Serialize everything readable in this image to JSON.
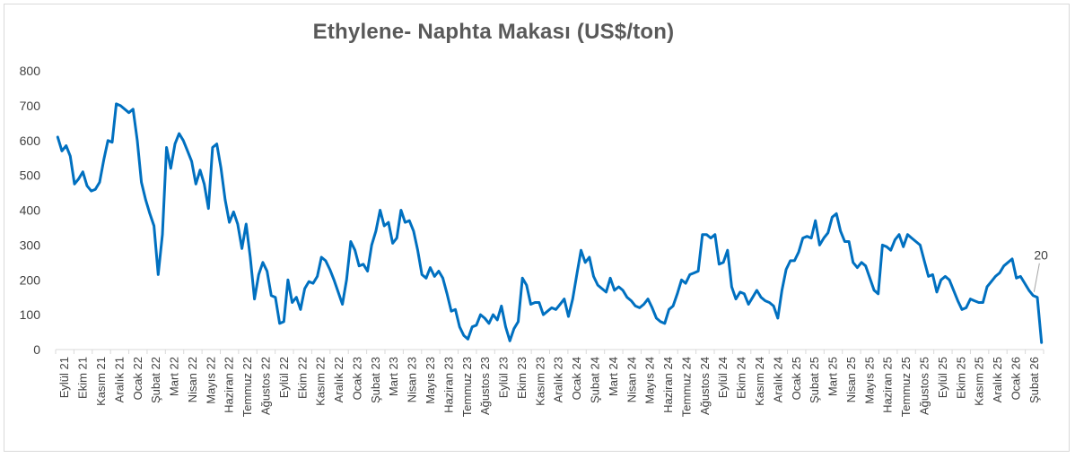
{
  "chart_data": {
    "type": "line",
    "title": "Ethylene- Naphta Makası (US$/ton)",
    "xlabel": "",
    "ylabel": "",
    "ylim": [
      0,
      800
    ],
    "yticks": [
      0,
      100,
      200,
      300,
      400,
      500,
      600,
      700,
      800
    ],
    "grid": false,
    "legend": "none",
    "color": "#0070C0",
    "x_tick_labels": [
      "Eylül 21",
      "Ekim 21",
      "Kasım 21",
      "Aralık 21",
      "Ocak 22",
      "Şubat 22",
      "Mart 22",
      "Nisan 22",
      "Mayıs 22",
      "Haziran 22",
      "Temmuz 22",
      "Ağustos 22",
      "Eylül 22",
      "Ekim 22",
      "Kasım 22",
      "Aralık 22",
      "Ocak 23",
      "Şubat 23",
      "Mart 23",
      "Nisan 23",
      "Mayıs 23",
      "Haziran 23",
      "Temmuz 23",
      "Ağustos 23",
      "Eylül 23",
      "Ekim 23",
      "Kasım 23",
      "Aralık 23",
      "Ocak 24",
      "Şubat 24",
      "Mart 24",
      "Nisan 24",
      "Mayıs 24",
      "Haziran 24",
      "Temmuz 24",
      "Ağustos 24",
      "Eylül 24",
      "Ekim 24",
      "Kasım 24",
      "Aralık 24",
      "Ocak 25",
      "Şubat 25",
      "Mart 25",
      "Nisan 25",
      "Mayıs 25",
      "Haziran 25",
      "Temmuz 25",
      "Ağustos 25",
      "Eylül 25",
      "Ekim 25",
      "Kasım 25",
      "Aralık 25",
      "Ocak 26",
      "Şubat 26"
    ],
    "values": [
      610,
      570,
      585,
      555,
      475,
      490,
      510,
      470,
      455,
      460,
      480,
      545,
      600,
      595,
      705,
      700,
      690,
      680,
      690,
      600,
      480,
      430,
      390,
      355,
      215,
      330,
      580,
      520,
      590,
      620,
      600,
      570,
      540,
      475,
      515,
      475,
      405,
      580,
      590,
      520,
      430,
      365,
      395,
      360,
      290,
      360,
      265,
      145,
      215,
      250,
      225,
      155,
      150,
      75,
      80,
      200,
      135,
      150,
      115,
      175,
      195,
      190,
      210,
      265,
      255,
      230,
      200,
      165,
      130,
      200,
      310,
      285,
      240,
      245,
      225,
      300,
      340,
      400,
      355,
      365,
      305,
      320,
      400,
      365,
      370,
      340,
      285,
      215,
      205,
      235,
      210,
      225,
      205,
      160,
      110,
      115,
      65,
      40,
      30,
      65,
      70,
      100,
      90,
      75,
      100,
      85,
      125,
      65,
      25,
      60,
      80,
      205,
      185,
      130,
      135,
      135,
      100,
      110,
      120,
      115,
      130,
      145,
      95,
      145,
      215,
      285,
      250,
      265,
      210,
      185,
      175,
      165,
      205,
      170,
      180,
      170,
      150,
      140,
      125,
      120,
      130,
      145,
      120,
      90,
      80,
      75,
      115,
      125,
      160,
      200,
      190,
      215,
      220,
      225,
      330,
      330,
      320,
      330,
      245,
      250,
      285,
      180,
      145,
      165,
      160,
      130,
      150,
      170,
      150,
      140,
      135,
      125,
      90,
      170,
      230,
      255,
      255,
      280,
      320,
      325,
      320,
      370,
      300,
      320,
      335,
      380,
      390,
      340,
      310,
      310,
      250,
      235,
      250,
      240,
      205,
      170,
      160,
      300,
      295,
      285,
      315,
      330,
      295,
      330,
      320,
      310,
      300,
      255,
      210,
      215,
      165,
      200,
      210,
      200,
      170,
      140,
      115,
      120,
      145,
      140,
      135,
      135,
      180,
      195,
      210,
      220,
      240,
      250,
      260,
      205,
      210,
      190,
      170,
      155,
      150,
      20
    ],
    "data_labels": [
      {
        "index": 233,
        "text": "20"
      }
    ]
  }
}
